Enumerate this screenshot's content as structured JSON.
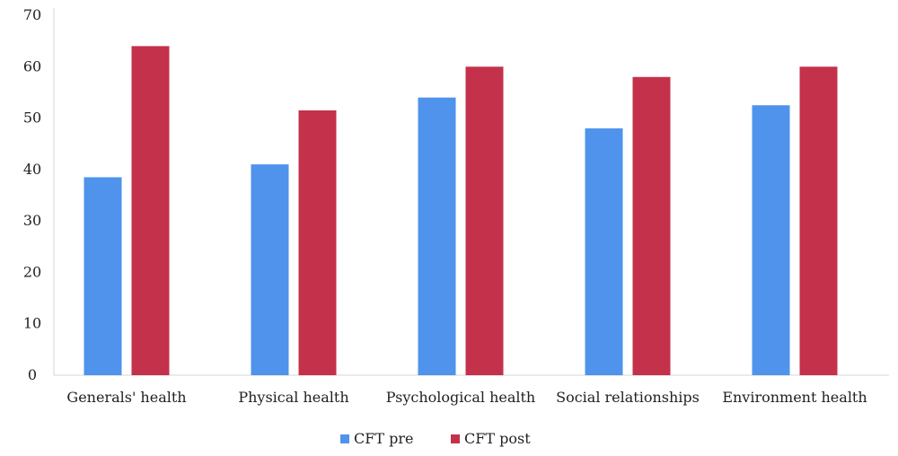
{
  "chart_data": {
    "type": "bar",
    "title": "",
    "xlabel": "",
    "ylabel": "",
    "ylim": [
      0,
      70
    ],
    "yticks": [
      0,
      10,
      20,
      30,
      40,
      50,
      60,
      70
    ],
    "grid": false,
    "legend_position": "bottom",
    "categories": [
      "Generals' health",
      "Physical health",
      "Psychological health",
      "Social relationships",
      "Environment health"
    ],
    "series": [
      {
        "name": "CFT pre",
        "color": "#4F93EC",
        "values": [
          38.5,
          41,
          54,
          48,
          52.5
        ]
      },
      {
        "name": "CFT post",
        "color": "#C4314B",
        "values": [
          64,
          51.5,
          60,
          58,
          60
        ]
      }
    ]
  }
}
